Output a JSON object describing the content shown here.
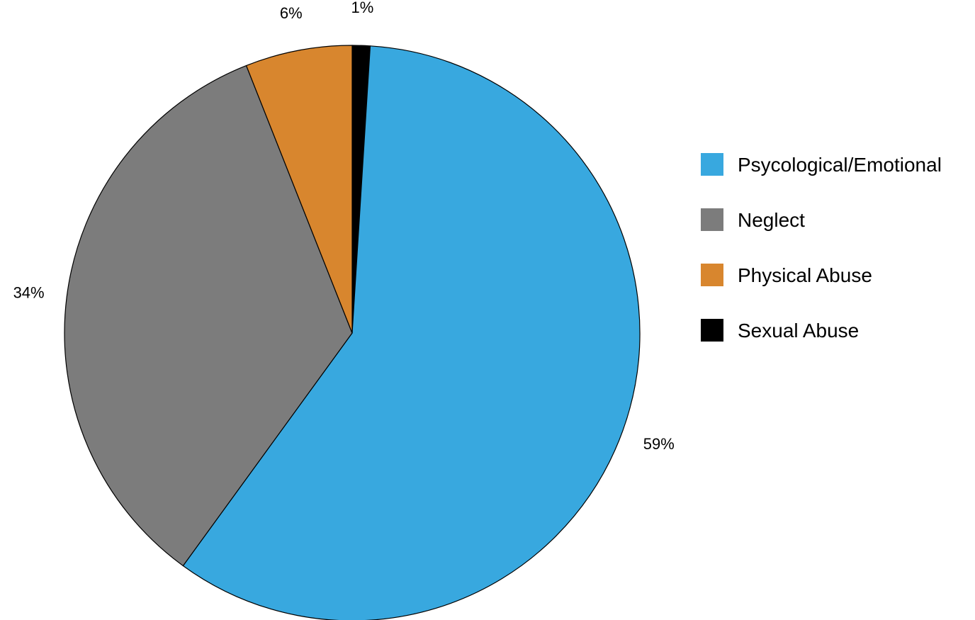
{
  "chart_data": {
    "type": "pie",
    "title": "",
    "start_angle_deg": 90,
    "direction": "clockwise",
    "slices": [
      {
        "name": "Sexual Abuse",
        "value": 1,
        "label": "1%",
        "color": "#000000"
      },
      {
        "name": "Psycological/Emotional",
        "value": 59,
        "label": "59%",
        "color": "#38a8df"
      },
      {
        "name": "Neglect",
        "value": 34,
        "label": "34%",
        "color": "#7c7c7c"
      },
      {
        "name": "Physical Abuse",
        "value": 6,
        "label": "6%",
        "color": "#d8862e"
      }
    ],
    "legend": {
      "placement": "right",
      "entries": [
        {
          "label": "Psycological/Emotional",
          "color": "#38a8df"
        },
        {
          "label": "Neglect",
          "color": "#7c7c7c"
        },
        {
          "label": "Physical Abuse",
          "color": "#d8862e"
        },
        {
          "label": "Sexual Abuse",
          "color": "#000000"
        }
      ]
    }
  }
}
